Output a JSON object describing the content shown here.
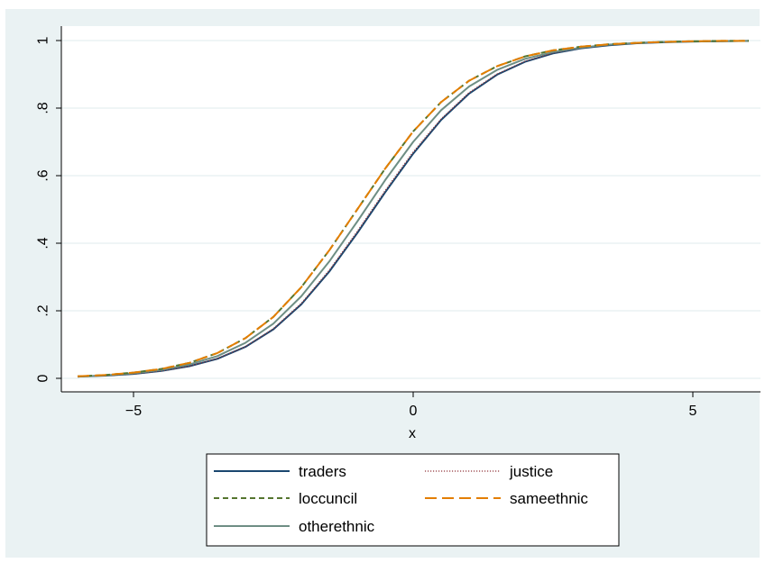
{
  "chart_data": {
    "type": "line",
    "title": "",
    "xlabel": "x",
    "ylabel": "",
    "xlim": [
      -6,
      6
    ],
    "ylim": [
      0,
      1
    ],
    "x_ticks": [
      -5,
      0,
      5
    ],
    "x_tick_labels": [
      "−5",
      "0",
      "5"
    ],
    "y_ticks": [
      0,
      0.2,
      0.4,
      0.6,
      0.8,
      1
    ],
    "y_tick_labels": [
      "0",
      ".2",
      ".4",
      ".6",
      ".8",
      "1"
    ],
    "grid": true,
    "legend_position": "bottom",
    "colors": {
      "outer_background": "#eaf2f3",
      "plot_background": "#ffffff",
      "grid": "#eaf2f3"
    },
    "x": [
      -6,
      -5.5,
      -5,
      -4.5,
      -4,
      -3.5,
      -3,
      -2.5,
      -2,
      -1.5,
      -1,
      -0.5,
      0,
      0.5,
      1,
      1.5,
      2,
      2.5,
      3,
      3.5,
      4,
      4.5,
      5,
      5.5,
      6
    ],
    "series": [
      {
        "name": "traders",
        "color": "#1a476f",
        "dash": "solid",
        "values": [
          0.005,
          0.008,
          0.013,
          0.022,
          0.036,
          0.058,
          0.093,
          0.145,
          0.219,
          0.316,
          0.43,
          0.551,
          0.665,
          0.765,
          0.843,
          0.899,
          0.937,
          0.962,
          0.977,
          0.986,
          0.992,
          0.995,
          0.997,
          0.998,
          0.999
        ]
      },
      {
        "name": "justice",
        "color": "#90353b",
        "dash": "dotted",
        "values": [
          0.005,
          0.008,
          0.013,
          0.022,
          0.036,
          0.059,
          0.094,
          0.147,
          0.222,
          0.32,
          0.435,
          0.556,
          0.67,
          0.768,
          0.846,
          0.901,
          0.939,
          0.963,
          0.978,
          0.987,
          0.992,
          0.995,
          0.997,
          0.998,
          0.999
        ]
      },
      {
        "name": "loccuncil",
        "color": "#55752f",
        "dash": "dashed",
        "values": [
          0.006,
          0.01,
          0.017,
          0.028,
          0.046,
          0.075,
          0.119,
          0.182,
          0.27,
          0.379,
          0.5,
          0.621,
          0.731,
          0.818,
          0.881,
          0.924,
          0.953,
          0.971,
          0.982,
          0.989,
          0.993,
          0.996,
          0.998,
          0.999,
          0.999
        ]
      },
      {
        "name": "sameethnic",
        "color": "#e37e00",
        "dash": "longdash",
        "values": [
          0.006,
          0.01,
          0.017,
          0.028,
          0.046,
          0.075,
          0.119,
          0.182,
          0.27,
          0.379,
          0.5,
          0.621,
          0.731,
          0.818,
          0.881,
          0.924,
          0.953,
          0.971,
          0.982,
          0.989,
          0.993,
          0.996,
          0.998,
          0.999,
          0.999
        ]
      },
      {
        "name": "otherethnic",
        "color": "#6e8e84",
        "dash": "solid",
        "values": [
          0.005,
          0.009,
          0.015,
          0.025,
          0.041,
          0.066,
          0.105,
          0.162,
          0.243,
          0.346,
          0.464,
          0.587,
          0.7,
          0.794,
          0.864,
          0.913,
          0.946,
          0.966,
          0.979,
          0.988,
          0.993,
          0.996,
          0.997,
          0.998,
          0.999
        ]
      }
    ]
  }
}
